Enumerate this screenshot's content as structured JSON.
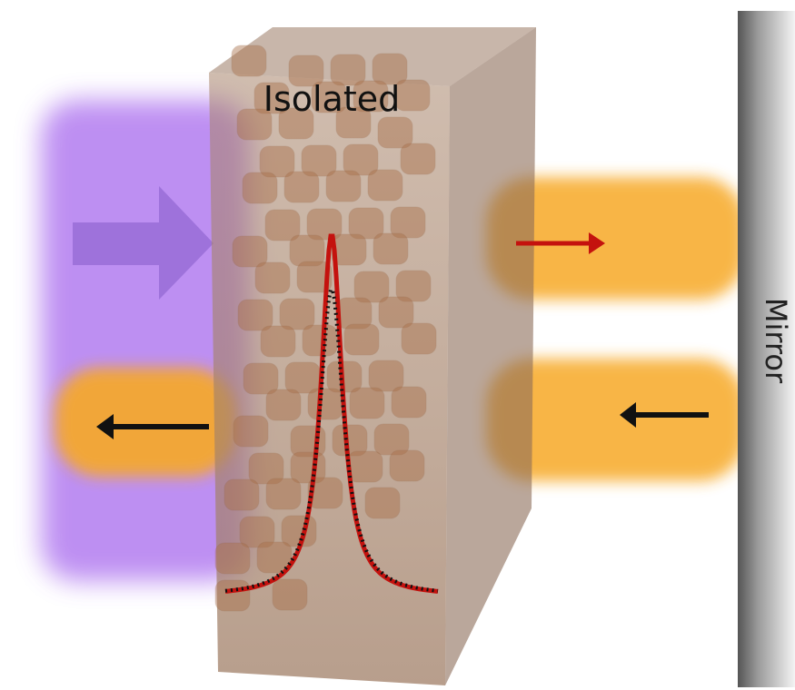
{
  "labels": {
    "title": "Isolated",
    "mirror": "Mirror"
  }
}
